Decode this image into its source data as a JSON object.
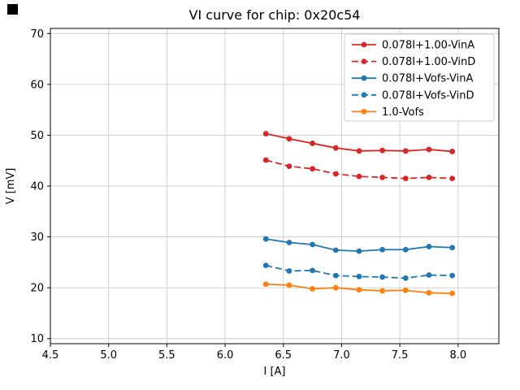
{
  "figure": {
    "background": "#ffffff"
  },
  "corner_mark": {
    "color": "#000000"
  },
  "chart_data": {
    "type": "line",
    "title": "VI curve for chip: 0x20c54",
    "xlabel": "I [A]",
    "ylabel": "V [mV]",
    "xlim": [
      4.5,
      8.35
    ],
    "ylim": [
      9,
      71
    ],
    "xticks": [
      4.5,
      5.0,
      5.5,
      6.0,
      6.5,
      7.0,
      7.5,
      8.0
    ],
    "yticks": [
      10,
      20,
      30,
      40,
      50,
      60,
      70
    ],
    "grid": true,
    "legend_position": "upper right",
    "x": [
      6.35,
      6.55,
      6.75,
      6.95,
      7.15,
      7.35,
      7.55,
      7.75,
      7.95
    ],
    "series": [
      {
        "name": "0.078I+1.00-VinA",
        "color": "#d62728",
        "linestyle": "solid",
        "marker": "circle",
        "values": [
          50.3,
          49.3,
          48.4,
          47.5,
          46.9,
          47.0,
          46.9,
          47.2,
          46.8
        ]
      },
      {
        "name": "0.078I+1.00-VinD",
        "color": "#d62728",
        "linestyle": "dashed",
        "marker": "circle",
        "values": [
          45.1,
          43.9,
          43.4,
          42.4,
          41.9,
          41.7,
          41.5,
          41.7,
          41.5
        ]
      },
      {
        "name": "0.078I+Vofs-VinA",
        "color": "#1f77b4",
        "linestyle": "solid",
        "marker": "circle",
        "values": [
          29.6,
          28.9,
          28.5,
          27.4,
          27.2,
          27.5,
          27.5,
          28.1,
          27.9
        ]
      },
      {
        "name": "0.078I+Vofs-VinD",
        "color": "#1f77b4",
        "linestyle": "dashed",
        "marker": "circle",
        "values": [
          24.4,
          23.3,
          23.4,
          22.4,
          22.2,
          22.1,
          21.9,
          22.5,
          22.4
        ]
      },
      {
        "name": "1.0-Vofs",
        "color": "#ff7f0e",
        "linestyle": "solid",
        "marker": "circle",
        "values": [
          20.7,
          20.5,
          19.8,
          20.0,
          19.6,
          19.4,
          19.5,
          19.0,
          18.9
        ]
      }
    ],
    "axis_color": "#000000",
    "grid_color": "#cccccc",
    "legend_border_color": "#cccccc"
  }
}
